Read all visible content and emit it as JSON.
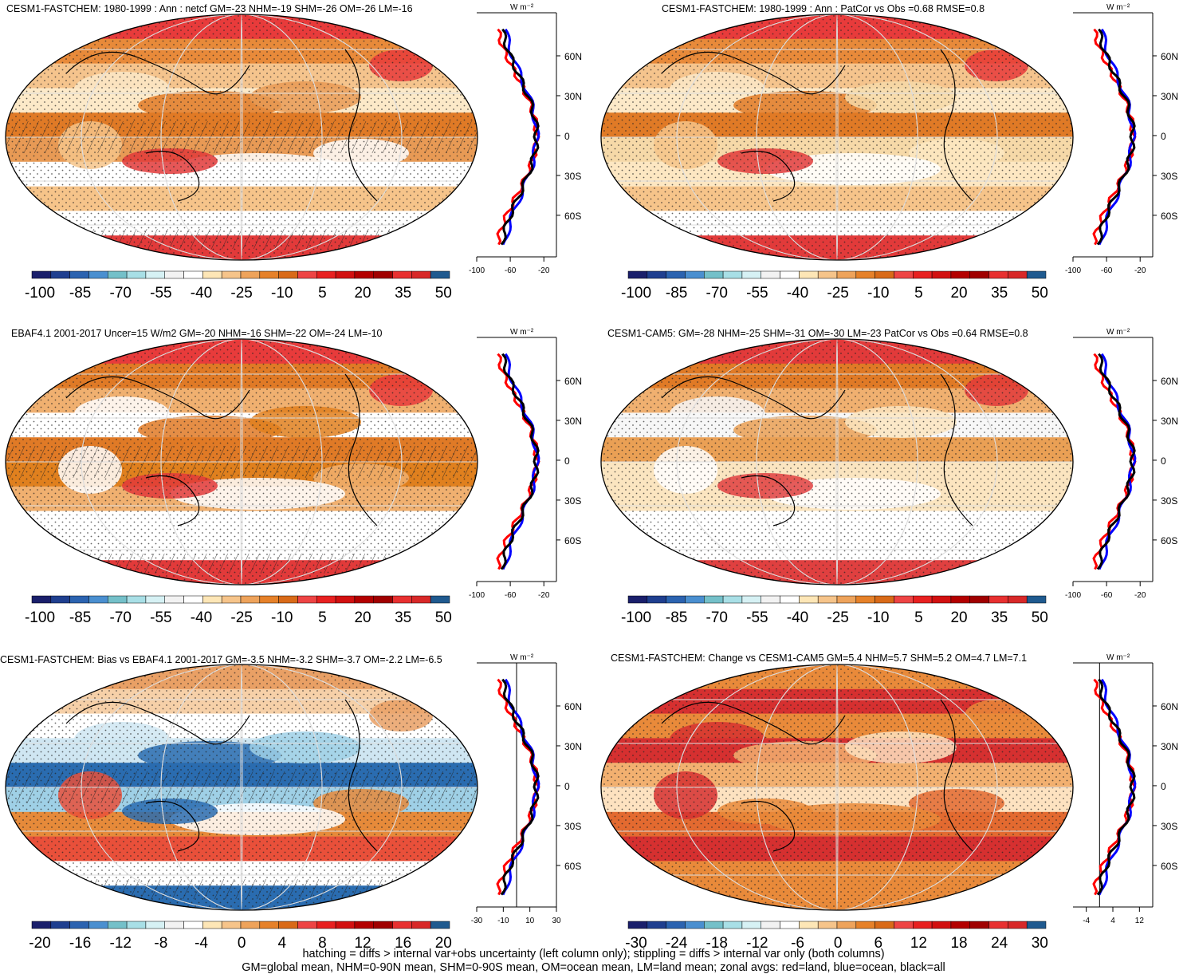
{
  "panels": [
    {
      "title": "CESM1-FASTCHEM: 1980-1999 : Ann : netcf GM=-23 NHM=-19 SHM=-26 OM=-26 LM=-16",
      "hatched": true,
      "cbar_labels": [
        "-100",
        "-85",
        "-70",
        "-55",
        "-40",
        "-25",
        "-10",
        "5",
        "20",
        "35",
        "50"
      ],
      "zonal_ticks": [
        "-100",
        "-60",
        "-20"
      ],
      "zonal_range": [
        -100,
        -5
      ]
    },
    {
      "title": "CESM1-FASTCHEM: 1980-1999 : Ann : PatCor vs Obs =0.68 RMSE=0.8",
      "hatched": false,
      "cbar_labels": [
        "-100",
        "-85",
        "-70",
        "-55",
        "-40",
        "-25",
        "-10",
        "5",
        "20",
        "35",
        "50"
      ],
      "zonal_ticks": [
        "-100",
        "-60",
        "-20"
      ],
      "zonal_range": [
        -100,
        -5
      ]
    },
    {
      "title": "EBAF4.1 2001-2017 Uncer=15 W/m2 GM=-20 NHM=-16 SHM=-22 OM=-24 LM=-10",
      "hatched": true,
      "cbar_labels": [
        "-100",
        "-85",
        "-70",
        "-55",
        "-40",
        "-25",
        "-10",
        "5",
        "20",
        "35",
        "50"
      ],
      "zonal_ticks": [
        "-100",
        "-60",
        "-20"
      ],
      "zonal_range": [
        -100,
        -5
      ]
    },
    {
      "title": "CESM1-CAM5: GM=-28 NHM=-25 SHM=-31 OM=-30 LM=-23 PatCor vs Obs =0.64 RMSE=0.8",
      "hatched": false,
      "cbar_labels": [
        "-100",
        "-85",
        "-70",
        "-55",
        "-40",
        "-25",
        "-10",
        "5",
        "20",
        "35",
        "50"
      ],
      "zonal_ticks": [
        "-100",
        "-60",
        "-20"
      ],
      "zonal_range": [
        -100,
        -5
      ]
    },
    {
      "title": "CESM1-FASTCHEM: Bias vs EBAF4.1 2001-2017 GM=-3.5 NHM=-3.2 SHM=-3.7 OM=-2.2 LM=-6.5",
      "hatched": true,
      "cbar_labels": [
        "-20",
        "-16",
        "-12",
        "-8",
        "-4",
        "0",
        "4",
        "8",
        "12",
        "16",
        "20"
      ],
      "zonal_ticks": [
        "-30",
        "-10",
        "10",
        "30"
      ],
      "zonal_range": [
        -30,
        30
      ],
      "zero_line": 0
    },
    {
      "title": "CESM1-FASTCHEM: Change vs CESM1-CAM5 GM=5.4 NHM=5.7 SHM=5.2 OM=4.7 LM=7.1",
      "hatched": false,
      "cbar_labels": [
        "-30",
        "-24",
        "-18",
        "-12",
        "-6",
        "0",
        "6",
        "12",
        "18",
        "24",
        "30"
      ],
      "zonal_ticks": [
        "-4",
        "4",
        "12"
      ],
      "zonal_range": [
        -8,
        16
      ],
      "zero_line": 0
    }
  ],
  "zonal_lat_labels": [
    "60N",
    "30N",
    "0",
    "30S",
    "60S"
  ],
  "zonal_units": "W m⁻²",
  "colors": {
    "palette": [
      "#1a1f6b",
      "#1f3f8f",
      "#2b63b0",
      "#4a8fd0",
      "#74c0c9",
      "#a8dfe6",
      "#d6f1f4",
      "#f2f2f2",
      "#ffffff",
      "#fde6b6",
      "#f6c48a",
      "#eea35b",
      "#e68129",
      "#d96a18",
      "#ee4444",
      "#e82020",
      "#d21010",
      "#b30000",
      "#a00000",
      "#e83030",
      "#d82828",
      "#1f5a8f"
    ],
    "land_line": "#ff0000",
    "ocean_line": "#0000ff",
    "all_line": "#000000"
  },
  "footnotes": [
    "hatching = diffs > internal var+obs uncertainty (left column only); stippling = diffs > internal var only (both columns)",
    "GM=global mean, NHM=0-90N mean, SHM=0-90S mean, OM=ocean mean, LM=land mean; zonal avgs: red=land, blue=ocean, black=all"
  ],
  "chart_data": [
    {
      "type": "heatmap",
      "title": "CESM1-FASTCHEM: 1980-1999 : Ann : netcf GM=-23 NHM=-19 SHM=-26 OM=-26 LM=-16",
      "colorbar": [
        -100,
        -85,
        -70,
        -55,
        -40,
        -25,
        -10,
        5,
        20,
        35,
        50
      ],
      "zonal_mean": {
        "x_ticks": [
          -100,
          -60,
          -20
        ],
        "y_ticks": [
          "60N",
          "30N",
          "0",
          "30S",
          "60S"
        ]
      }
    },
    {
      "type": "heatmap",
      "title": "CESM1-FASTCHEM: 1980-1999 : Ann : PatCor vs Obs =0.68 RMSE=0.8",
      "colorbar": [
        -100,
        -85,
        -70,
        -55,
        -40,
        -25,
        -10,
        5,
        20,
        35,
        50
      ]
    },
    {
      "type": "heatmap",
      "title": "EBAF4.1 2001-2017 Uncer=15 W/m2 GM=-20 NHM=-16 SHM=-22 OM=-24 LM=-10",
      "colorbar": [
        -100,
        -85,
        -70,
        -55,
        -40,
        -25,
        -10,
        5,
        20,
        35,
        50
      ]
    },
    {
      "type": "heatmap",
      "title": "CESM1-CAM5: GM=-28 NHM=-25 SHM=-31 OM=-30 LM=-23 PatCor vs Obs =0.64 RMSE=0.8",
      "colorbar": [
        -100,
        -85,
        -70,
        -55,
        -40,
        -25,
        -10,
        5,
        20,
        35,
        50
      ]
    },
    {
      "type": "heatmap",
      "title": "CESM1-FASTCHEM: Bias vs EBAF4.1 2001-2017 GM=-3.5 NHM=-3.2 SHM=-3.7 OM=-2.2 LM=-6.5",
      "colorbar": [
        -20,
        -16,
        -12,
        -8,
        -4,
        0,
        4,
        8,
        12,
        16,
        20
      ],
      "zonal_mean": {
        "x_ticks": [
          -30,
          -10,
          10,
          30
        ]
      }
    },
    {
      "type": "heatmap",
      "title": "CESM1-FASTCHEM: Change vs CESM1-CAM5 GM=5.4 NHM=5.7 SHM=5.2 OM=4.7 LM=7.1",
      "colorbar": [
        -30,
        -24,
        -18,
        -12,
        -6,
        0,
        6,
        12,
        18,
        24,
        30
      ],
      "zonal_mean": {
        "x_ticks": [
          -4,
          4,
          12
        ]
      }
    }
  ]
}
